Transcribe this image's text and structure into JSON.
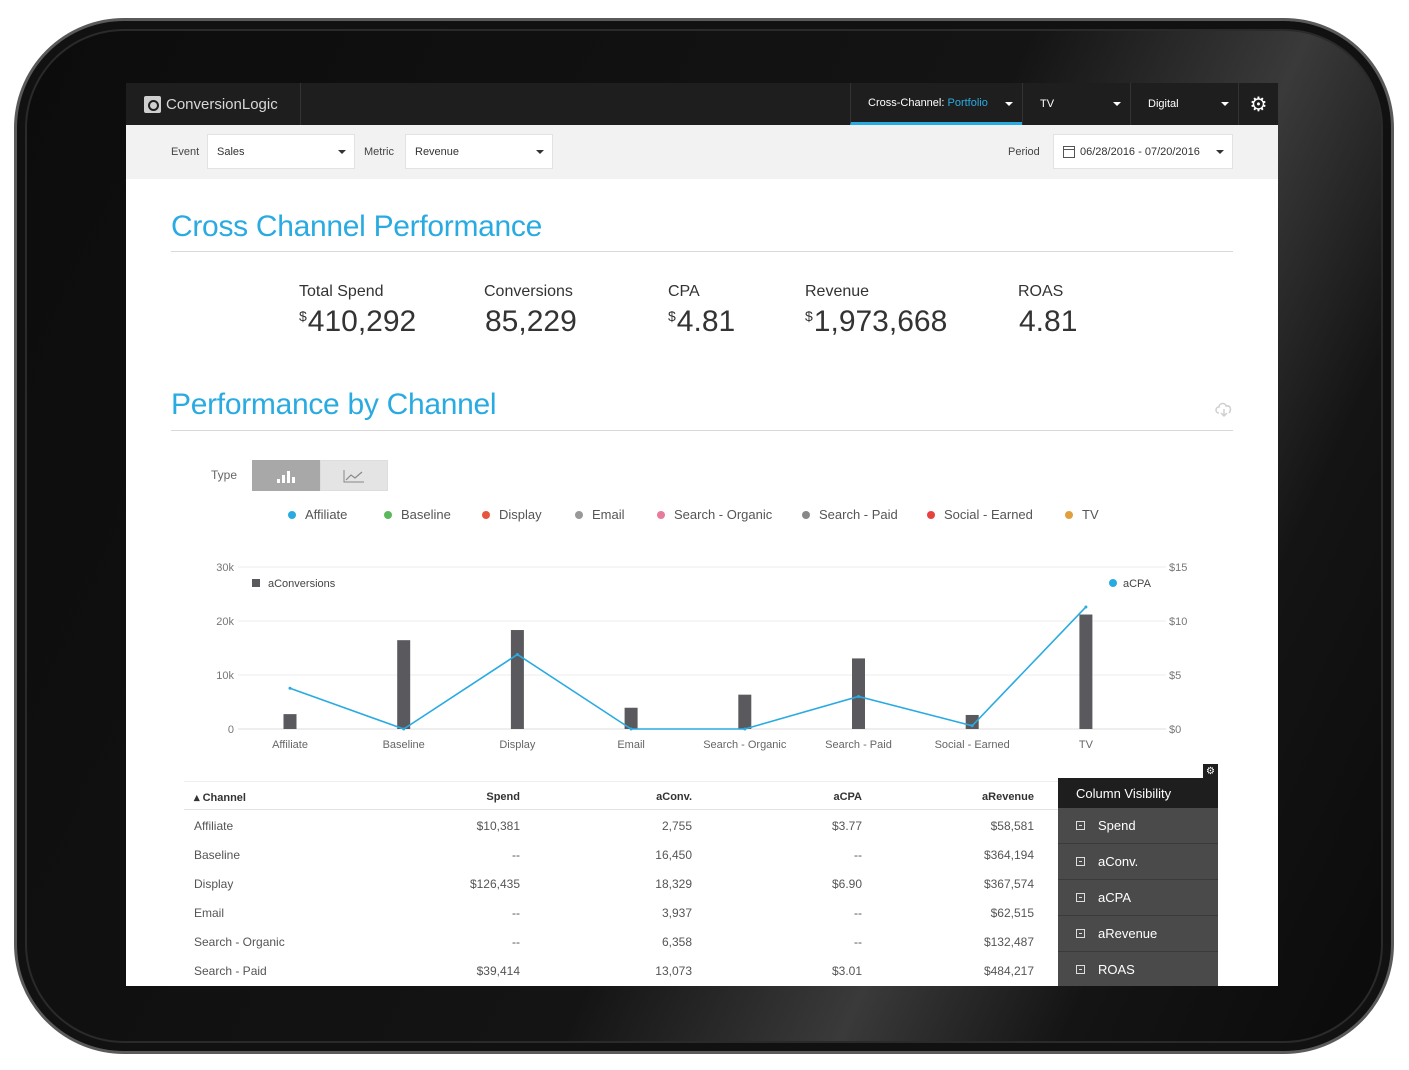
{
  "app": {
    "logo_text": "ConversionLogic"
  },
  "nav": {
    "tabs": [
      {
        "prefix": "Cross-Channel: ",
        "highlight": "Portfolio"
      },
      {
        "label": "TV"
      },
      {
        "label": "Digital"
      }
    ],
    "settings_icon": "gear-icon"
  },
  "filters": {
    "event_label": "Event",
    "event_value": "Sales",
    "metric_label": "Metric",
    "metric_value": "Revenue",
    "period_label": "Period",
    "period_value": "06/28/2016 - 07/20/2016"
  },
  "summary": {
    "title": "Cross Channel Performance",
    "kpis": [
      {
        "label": "Total Spend",
        "prefix": "$",
        "value": "410,292"
      },
      {
        "label": "Conversions",
        "prefix": "",
        "value": "85,229"
      },
      {
        "label": "CPA",
        "prefix": "$",
        "value": "4.81"
      },
      {
        "label": "Revenue",
        "prefix": "$",
        "value": "1,973,668"
      },
      {
        "label": "ROAS",
        "prefix": "",
        "value": "4.81"
      }
    ]
  },
  "channel_section": {
    "title": "Performance by Channel",
    "type_label": "Type",
    "legend": [
      {
        "name": "Affiliate",
        "color": "#29abe2"
      },
      {
        "name": "Baseline",
        "color": "#5cb85c"
      },
      {
        "name": "Display",
        "color": "#e8553e"
      },
      {
        "name": "Email",
        "color": "#999999"
      },
      {
        "name": "Search - Organic",
        "color": "#e87a9b"
      },
      {
        "name": "Search - Paid",
        "color": "#888888"
      },
      {
        "name": "Social - Earned",
        "color": "#e8413e"
      },
      {
        "name": "TV",
        "color": "#e0a040"
      }
    ]
  },
  "chart_data": {
    "type": "bar",
    "categories": [
      "Affiliate",
      "Baseline",
      "Display",
      "Email",
      "Search - Organic",
      "Search - Paid",
      "Social - Earned",
      "TV"
    ],
    "series": [
      {
        "name": "aConversions",
        "type": "bar",
        "axis": "left",
        "color": "#5a5a5e",
        "values": [
          2755,
          16450,
          18329,
          3937,
          6358,
          13073,
          2600,
          21200
        ]
      },
      {
        "name": "aCPA",
        "type": "line",
        "axis": "right",
        "color": "#29abe2",
        "values": [
          3.77,
          0,
          6.9,
          0,
          0,
          3.01,
          0.3,
          11.3
        ]
      }
    ],
    "y_left": {
      "ticks": [
        "0",
        "10k",
        "20k",
        "30k"
      ],
      "range": [
        0,
        30000
      ]
    },
    "y_right": {
      "ticks": [
        "$0",
        "$5",
        "$10",
        "$15"
      ],
      "range": [
        0,
        15
      ]
    },
    "legend_left": "aConversions",
    "legend_right": "aCPA",
    "grid": true
  },
  "table": {
    "columns": [
      "Channel",
      "Spend",
      "aConv.",
      "aCPA",
      "aRevenue"
    ],
    "rows": [
      [
        "Affiliate",
        "$10,381",
        "2,755",
        "$3.77",
        "$58,581"
      ],
      [
        "Baseline",
        "--",
        "16,450",
        "--",
        "$364,194"
      ],
      [
        "Display",
        "$126,435",
        "18,329",
        "$6.90",
        "$367,574"
      ],
      [
        "Email",
        "--",
        "3,937",
        "--",
        "$62,515"
      ],
      [
        "Search - Organic",
        "--",
        "6,358",
        "--",
        "$132,487"
      ],
      [
        "Search - Paid",
        "$39,414",
        "13,073",
        "$3.01",
        "$484,217"
      ]
    ]
  },
  "column_visibility": {
    "title": "Column Visibility",
    "items": [
      "Spend",
      "aConv.",
      "aCPA",
      "aRevenue",
      "ROAS"
    ]
  }
}
